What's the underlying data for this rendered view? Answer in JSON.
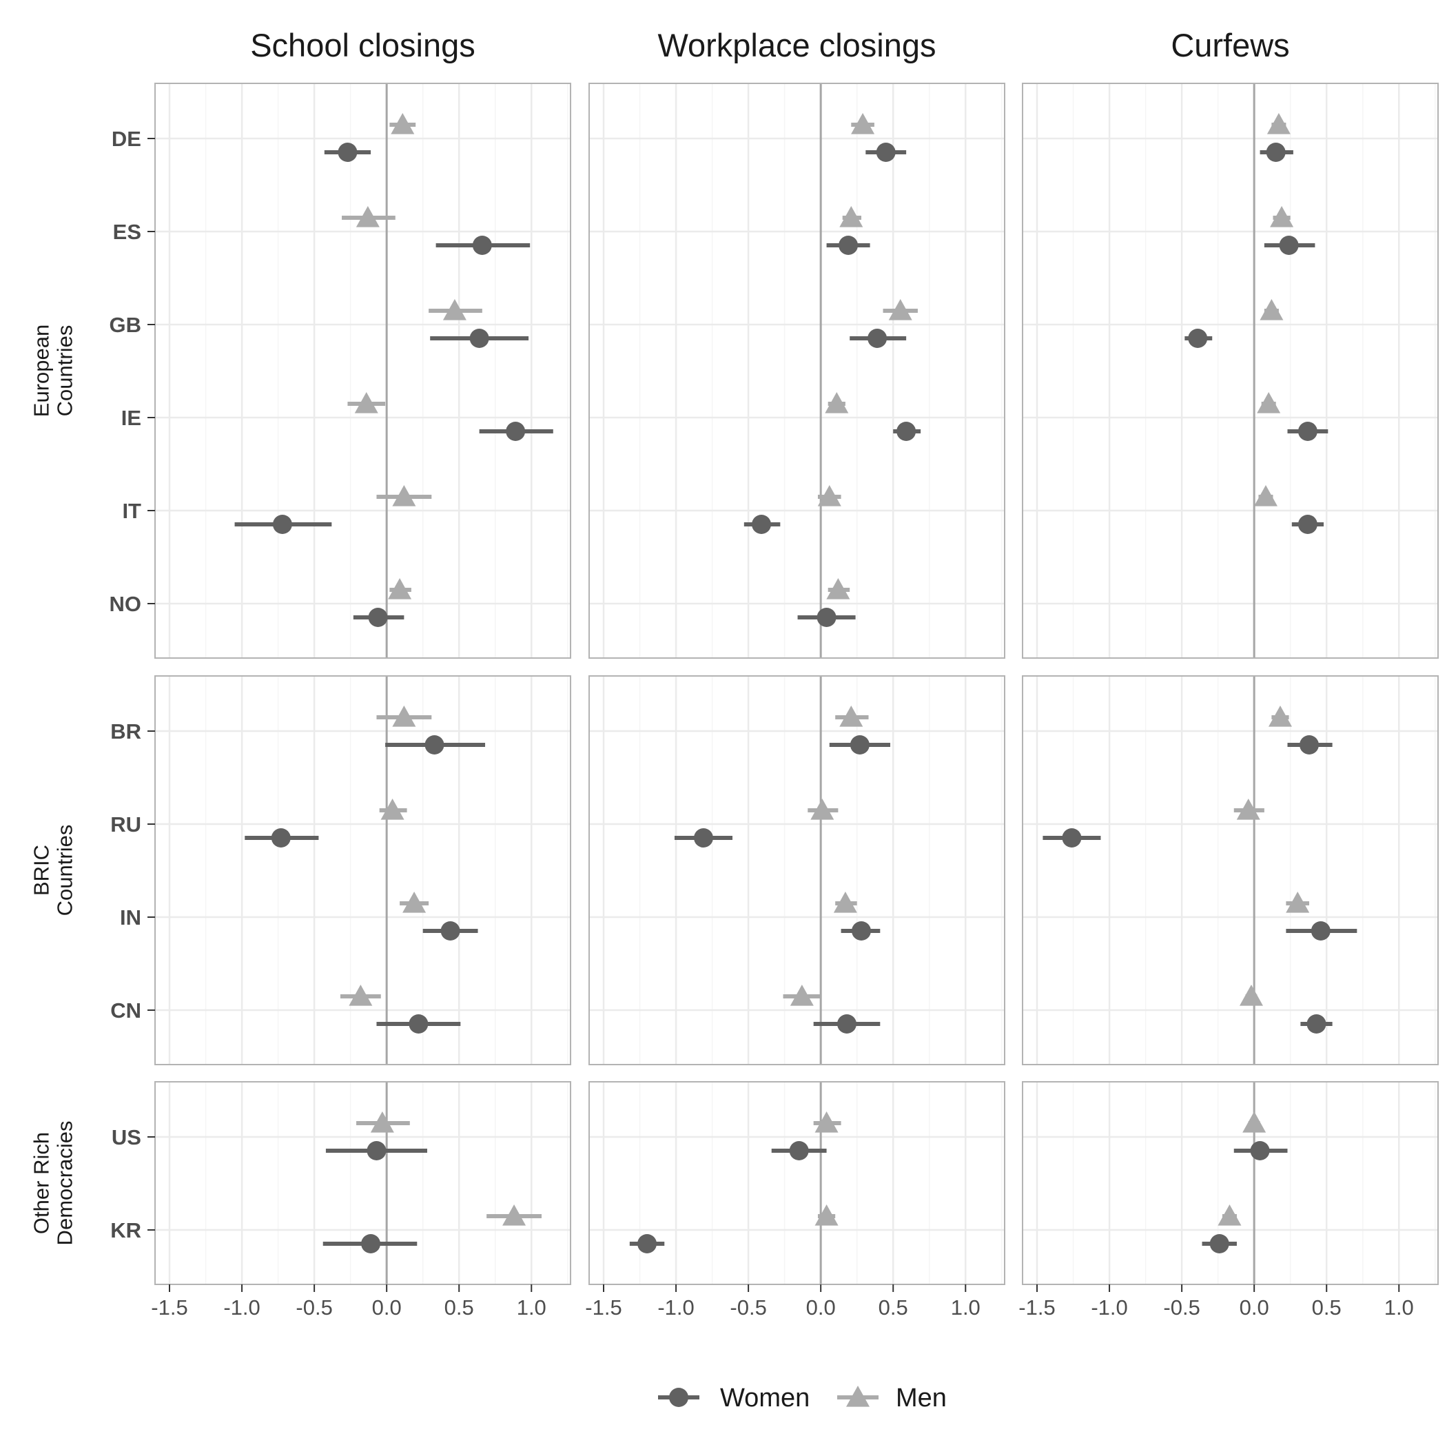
{
  "chart_data": {
    "type": "dot-whisker",
    "columns": [
      "School closings",
      "Workplace closings",
      "Curfews"
    ],
    "x_ticks": [
      "-1.5",
      "-1.0",
      "-0.5",
      "0.0",
      "0.5",
      "1.0"
    ],
    "x_tick_values": [
      -1.5,
      -1.0,
      -0.5,
      0.0,
      0.5,
      1.0
    ],
    "xlim": [
      -1.6,
      1.27
    ],
    "reference_line": 0,
    "grid": true,
    "legend_position": "bottom",
    "series": [
      {
        "name": "Women",
        "marker": "circle",
        "color": "#616161"
      },
      {
        "name": "Men",
        "marker": "triangle",
        "color": "#ababab"
      }
    ],
    "groups": [
      {
        "label": [
          "European",
          "Countries"
        ],
        "countries": [
          {
            "code": "DE",
            "values": [
              {
                "women": [
                  -0.27,
                  -0.43,
                  -0.11
                ],
                "men": [
                  0.11,
                  0.02,
                  0.2
                ]
              },
              {
                "women": [
                  0.45,
                  0.31,
                  0.59
                ],
                "men": [
                  0.29,
                  0.21,
                  0.37
                ]
              },
              {
                "women": [
                  0.15,
                  0.04,
                  0.27
                ],
                "men": [
                  0.17,
                  0.12,
                  0.22
                ]
              }
            ]
          },
          {
            "code": "ES",
            "values": [
              {
                "women": [
                  0.66,
                  0.34,
                  0.99
                ],
                "men": [
                  -0.13,
                  -0.31,
                  0.06
                ]
              },
              {
                "women": [
                  0.19,
                  0.04,
                  0.34
                ],
                "men": [
                  0.21,
                  0.15,
                  0.28
                ]
              },
              {
                "women": [
                  0.24,
                  0.07,
                  0.42
                ],
                "men": [
                  0.19,
                  0.13,
                  0.25
                ]
              }
            ]
          },
          {
            "code": "GB",
            "values": [
              {
                "women": [
                  0.64,
                  0.3,
                  0.98
                ],
                "men": [
                  0.47,
                  0.29,
                  0.66
                ]
              },
              {
                "women": [
                  0.39,
                  0.2,
                  0.59
                ],
                "men": [
                  0.55,
                  0.43,
                  0.67
                ]
              },
              {
                "women": [
                  -0.39,
                  -0.48,
                  -0.29
                ],
                "men": [
                  0.12,
                  0.07,
                  0.17
                ]
              }
            ]
          },
          {
            "code": "IE",
            "values": [
              {
                "women": [
                  0.89,
                  0.64,
                  1.15
                ],
                "men": [
                  -0.14,
                  -0.27,
                  -0.01
                ]
              },
              {
                "women": [
                  0.59,
                  0.5,
                  0.69
                ],
                "men": [
                  0.11,
                  0.05,
                  0.17
                ]
              },
              {
                "women": [
                  0.37,
                  0.23,
                  0.51
                ],
                "men": [
                  0.1,
                  0.05,
                  0.15
                ]
              }
            ]
          },
          {
            "code": "IT",
            "values": [
              {
                "women": [
                  -0.72,
                  -1.05,
                  -0.38
                ],
                "men": [
                  0.12,
                  -0.07,
                  0.31
                ]
              },
              {
                "women": [
                  -0.41,
                  -0.53,
                  -0.28
                ],
                "men": [
                  0.06,
                  -0.02,
                  0.14
                ]
              },
              {
                "women": [
                  0.37,
                  0.26,
                  0.48
                ],
                "men": [
                  0.08,
                  0.03,
                  0.13
                ]
              }
            ]
          },
          {
            "code": "NO",
            "values": [
              {
                "women": [
                  -0.06,
                  -0.23,
                  0.12
                ],
                "men": [
                  0.09,
                  0.02,
                  0.17
                ]
              },
              {
                "women": [
                  0.04,
                  -0.16,
                  0.24
                ],
                "men": [
                  0.12,
                  0.05,
                  0.2
                ]
              },
              {
                "women": null,
                "men": null
              }
            ]
          }
        ]
      },
      {
        "label": [
          "BRIC",
          "Countries"
        ],
        "countries": [
          {
            "code": "BR",
            "values": [
              {
                "women": [
                  0.33,
                  -0.01,
                  0.68
                ],
                "men": [
                  0.12,
                  -0.07,
                  0.31
                ]
              },
              {
                "women": [
                  0.27,
                  0.06,
                  0.48
                ],
                "men": [
                  0.21,
                  0.1,
                  0.33
                ]
              },
              {
                "women": [
                  0.38,
                  0.23,
                  0.54
                ],
                "men": [
                  0.18,
                  0.12,
                  0.24
                ]
              }
            ]
          },
          {
            "code": "RU",
            "values": [
              {
                "women": [
                  -0.73,
                  -0.98,
                  -0.47
                ],
                "men": [
                  0.04,
                  -0.05,
                  0.14
                ]
              },
              {
                "women": [
                  -0.81,
                  -1.01,
                  -0.61
                ],
                "men": [
                  0.01,
                  -0.09,
                  0.12
                ]
              },
              {
                "women": [
                  -1.26,
                  -1.46,
                  -1.06
                ],
                "men": [
                  -0.04,
                  -0.14,
                  0.07
                ]
              }
            ]
          },
          {
            "code": "IN",
            "values": [
              {
                "women": [
                  0.44,
                  0.25,
                  0.63
                ],
                "men": [
                  0.19,
                  0.09,
                  0.29
                ]
              },
              {
                "women": [
                  0.28,
                  0.14,
                  0.41
                ],
                "men": [
                  0.17,
                  0.1,
                  0.25
                ]
              },
              {
                "women": [
                  0.46,
                  0.22,
                  0.71
                ],
                "men": [
                  0.3,
                  0.22,
                  0.38
                ]
              }
            ]
          },
          {
            "code": "CN",
            "values": [
              {
                "women": [
                  0.22,
                  -0.07,
                  0.51
                ],
                "men": [
                  -0.18,
                  -0.32,
                  -0.04
                ]
              },
              {
                "women": [
                  0.18,
                  -0.05,
                  0.41
                ],
                "men": [
                  -0.13,
                  -0.26,
                  0.0
                ]
              },
              {
                "women": [
                  0.43,
                  0.32,
                  0.54
                ],
                "men": [
                  -0.02,
                  -0.06,
                  0.02
                ]
              }
            ]
          }
        ]
      },
      {
        "label": [
          "Other Rich",
          "Democracies"
        ],
        "countries": [
          {
            "code": "US",
            "values": [
              {
                "women": [
                  -0.07,
                  -0.42,
                  0.28
                ],
                "men": [
                  -0.03,
                  -0.21,
                  0.16
                ]
              },
              {
                "women": [
                  -0.15,
                  -0.34,
                  0.04
                ],
                "men": [
                  0.04,
                  -0.05,
                  0.14
                ]
              },
              {
                "women": [
                  0.04,
                  -0.14,
                  0.23
                ],
                "men": [
                  0.0,
                  -0.04,
                  0.04
                ]
              }
            ]
          },
          {
            "code": "KR",
            "values": [
              {
                "women": [
                  -0.11,
                  -0.44,
                  0.21
                ],
                "men": [
                  0.88,
                  0.69,
                  1.07
                ]
              },
              {
                "women": [
                  -1.2,
                  -1.32,
                  -1.08
                ],
                "men": [
                  0.04,
                  -0.02,
                  0.1
                ]
              },
              {
                "women": [
                  -0.24,
                  -0.36,
                  -0.12
                ],
                "men": [
                  -0.17,
                  -0.22,
                  -0.12
                ]
              }
            ]
          }
        ]
      }
    ],
    "colors": {
      "women": "#616161",
      "men": "#ababab",
      "panel_border": "#b3b3b3",
      "grid_major": "#ebebeb",
      "grid_minor": "#f5f5f5",
      "zero_line": "#a6a6a6"
    }
  }
}
